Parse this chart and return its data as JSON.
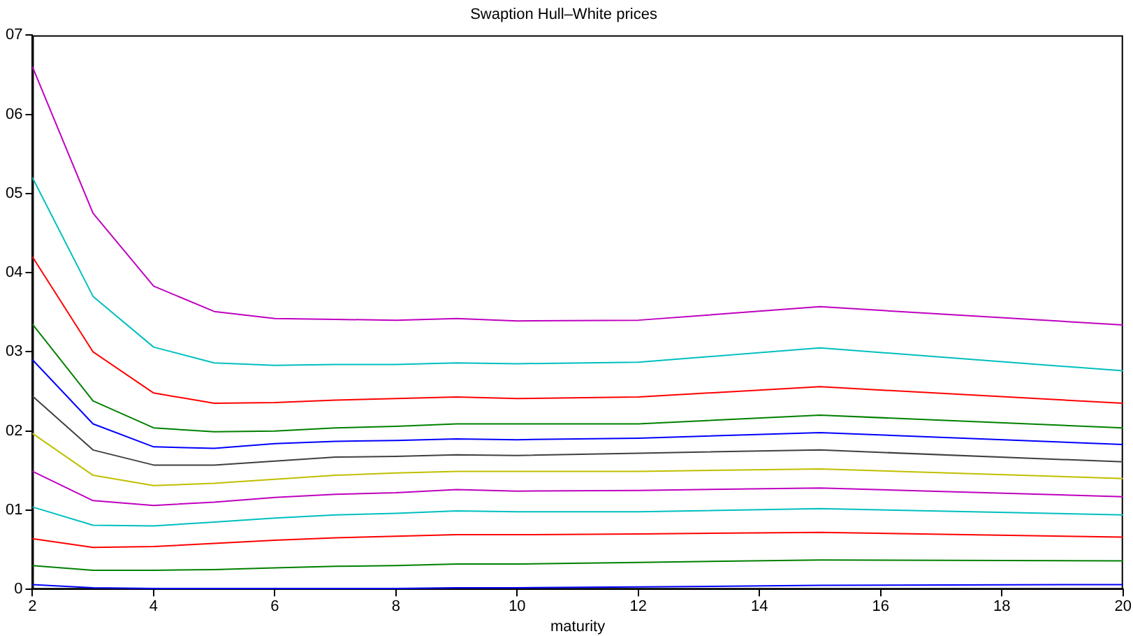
{
  "chart_data": {
    "type": "line",
    "title": "Swaption Hull–White prices",
    "xlabel": "maturity",
    "x": [
      2,
      3,
      4,
      5,
      6,
      7,
      8,
      9,
      10,
      12,
      15,
      20
    ],
    "xlim": [
      2,
      20
    ],
    "xticks": [
      2,
      4,
      6,
      8,
      10,
      12,
      14,
      16,
      18,
      20
    ],
    "ylim": [
      0,
      7
    ],
    "yticks": [
      0,
      {
        "value": 1,
        "label": "01"
      },
      {
        "value": 2,
        "label": "02"
      },
      {
        "value": 3,
        "label": "03"
      },
      {
        "value": 4,
        "label": "04"
      },
      {
        "value": 5,
        "label": "05"
      },
      {
        "value": 6,
        "label": "06"
      },
      {
        "value": 7,
        "label": "07"
      }
    ],
    "marker": "none",
    "line_style": "solid",
    "series": [
      {
        "color": "#bf00bf",
        "values": [
          6.6,
          4.75,
          3.83,
          3.51,
          3.42,
          3.41,
          3.4,
          3.42,
          3.39,
          3.4,
          3.57,
          3.34
        ]
      },
      {
        "color": "#00bfbf",
        "values": [
          5.2,
          3.7,
          3.06,
          2.86,
          2.83,
          2.84,
          2.84,
          2.86,
          2.85,
          2.87,
          3.05,
          2.76
        ]
      },
      {
        "color": "#ff0000",
        "values": [
          4.2,
          3.0,
          2.48,
          2.35,
          2.36,
          2.39,
          2.41,
          2.43,
          2.41,
          2.43,
          2.56,
          2.35
        ]
      },
      {
        "color": "#008000",
        "values": [
          3.35,
          2.38,
          2.04,
          1.99,
          2.0,
          2.04,
          2.06,
          2.09,
          2.09,
          2.09,
          2.2,
          2.04
        ]
      },
      {
        "color": "#0000ff",
        "values": [
          2.9,
          2.09,
          1.8,
          1.78,
          1.84,
          1.87,
          1.88,
          1.9,
          1.89,
          1.91,
          1.98,
          1.83
        ]
      },
      {
        "color": "#404040",
        "values": [
          2.44,
          1.76,
          1.57,
          1.57,
          1.62,
          1.67,
          1.68,
          1.7,
          1.69,
          1.72,
          1.76,
          1.61
        ]
      },
      {
        "color": "#bfbf00",
        "values": [
          1.97,
          1.44,
          1.31,
          1.34,
          1.39,
          1.44,
          1.47,
          1.49,
          1.49,
          1.49,
          1.52,
          1.4
        ]
      },
      {
        "color": "#bf00bf",
        "values": [
          1.49,
          1.12,
          1.06,
          1.1,
          1.16,
          1.2,
          1.22,
          1.26,
          1.24,
          1.25,
          1.28,
          1.17
        ]
      },
      {
        "color": "#00bfbf",
        "values": [
          1.04,
          0.81,
          0.8,
          0.85,
          0.9,
          0.94,
          0.96,
          0.99,
          0.98,
          0.98,
          1.02,
          0.94
        ]
      },
      {
        "color": "#ff0000",
        "values": [
          0.64,
          0.53,
          0.54,
          0.58,
          0.62,
          0.65,
          0.67,
          0.69,
          0.69,
          0.7,
          0.72,
          0.66
        ]
      },
      {
        "color": "#008000",
        "values": [
          0.3,
          0.24,
          0.24,
          0.25,
          0.27,
          0.29,
          0.3,
          0.32,
          0.32,
          0.34,
          0.37,
          0.36
        ]
      },
      {
        "color": "#0000ff",
        "values": [
          0.06,
          0.02,
          0.01,
          0.01,
          0.01,
          0.01,
          0.01,
          0.02,
          0.02,
          0.03,
          0.05,
          0.06
        ]
      }
    ]
  }
}
